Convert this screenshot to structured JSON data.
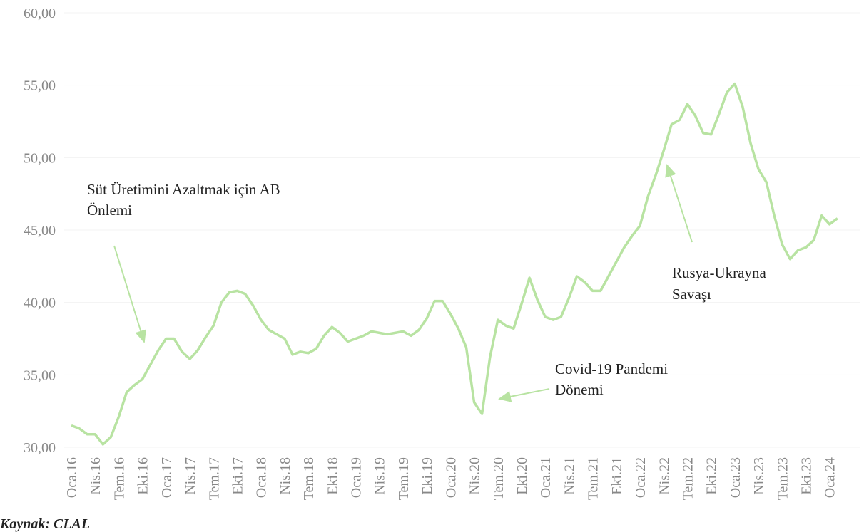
{
  "chart_data": {
    "type": "line",
    "categories": [
      "Oca.16",
      null,
      null,
      "Nis.16",
      null,
      null,
      "Tem.16",
      null,
      null,
      "Eki.16",
      null,
      null,
      "Oca.17",
      null,
      null,
      "Nis.17",
      null,
      null,
      "Tem.17",
      null,
      null,
      "Eki.17",
      null,
      null,
      "Oca.18",
      null,
      null,
      "Nis.18",
      null,
      null,
      "Tem.18",
      null,
      null,
      "Eki.18",
      null,
      null,
      "Oca.19",
      null,
      null,
      "Nis.19",
      null,
      null,
      "Tem.19",
      null,
      null,
      "Eki.19",
      null,
      null,
      "Oca.20",
      null,
      null,
      "Nis.20",
      null,
      null,
      "Tem.20",
      null,
      null,
      "Eki.20",
      null,
      null,
      "Oca.21",
      null,
      null,
      "Nis.21",
      null,
      null,
      "Tem.21",
      null,
      null,
      "Eki.21",
      null,
      null,
      "Oca.22",
      null,
      null,
      "Nis.22",
      null,
      null,
      "Tem.22",
      null,
      null,
      "Eki.22",
      null,
      null,
      "Oca.23",
      null,
      null,
      "Nis.23",
      null,
      null,
      "Tem.23",
      null,
      null,
      "Eki.23",
      null,
      null,
      "Oca.24",
      null
    ],
    "values": [
      31.5,
      31.3,
      30.9,
      30.9,
      30.2,
      30.7,
      32.1,
      33.8,
      34.3,
      34.7,
      35.7,
      36.7,
      37.5,
      37.5,
      36.6,
      36.1,
      36.7,
      37.6,
      38.4,
      40.0,
      40.7,
      40.8,
      40.6,
      39.8,
      38.8,
      38.1,
      37.8,
      37.5,
      36.4,
      36.6,
      36.5,
      36.8,
      37.7,
      38.3,
      37.9,
      37.3,
      37.5,
      37.7,
      38.0,
      37.9,
      37.8,
      37.9,
      38.0,
      37.7,
      38.1,
      38.9,
      40.1,
      40.1,
      39.2,
      38.2,
      36.9,
      33.1,
      32.3,
      36.2,
      38.8,
      38.4,
      38.2,
      39.9,
      41.7,
      40.2,
      39.0,
      38.8,
      39.0,
      40.3,
      41.8,
      41.4,
      40.8,
      40.8,
      41.8,
      42.8,
      43.8,
      44.6,
      45.3,
      47.3,
      48.8,
      50.5,
      52.3,
      52.6,
      53.7,
      52.9,
      51.7,
      51.6,
      53.0,
      54.5,
      55.1,
      53.5,
      51.0,
      49.2,
      48.3,
      46.0,
      44.0,
      43.0,
      43.6,
      43.8,
      44.3,
      46.0,
      45.4,
      45.8
    ],
    "color": "#b8e3a2",
    "ylim": [
      30,
      60
    ],
    "yticks": [
      {
        "value": 30,
        "label": "30,00"
      },
      {
        "value": 35,
        "label": "35,00"
      },
      {
        "value": 40,
        "label": "40,00"
      },
      {
        "value": 45,
        "label": "45,00"
      },
      {
        "value": 50,
        "label": "50,00"
      },
      {
        "value": 55,
        "label": "55,00"
      },
      {
        "value": 60,
        "label": "60,00"
      }
    ],
    "grid": true,
    "annotations": [
      {
        "lines": [
          "Süt Üretimini Azaltmak için AB",
          "Önlemi"
        ]
      },
      {
        "lines": [
          "Covid-19 Pandemi",
          "Dönemi"
        ]
      },
      {
        "lines": [
          "Rusya-Ukrayna",
          "Savaşı"
        ]
      }
    ],
    "source": "Kaynak: CLAL"
  }
}
